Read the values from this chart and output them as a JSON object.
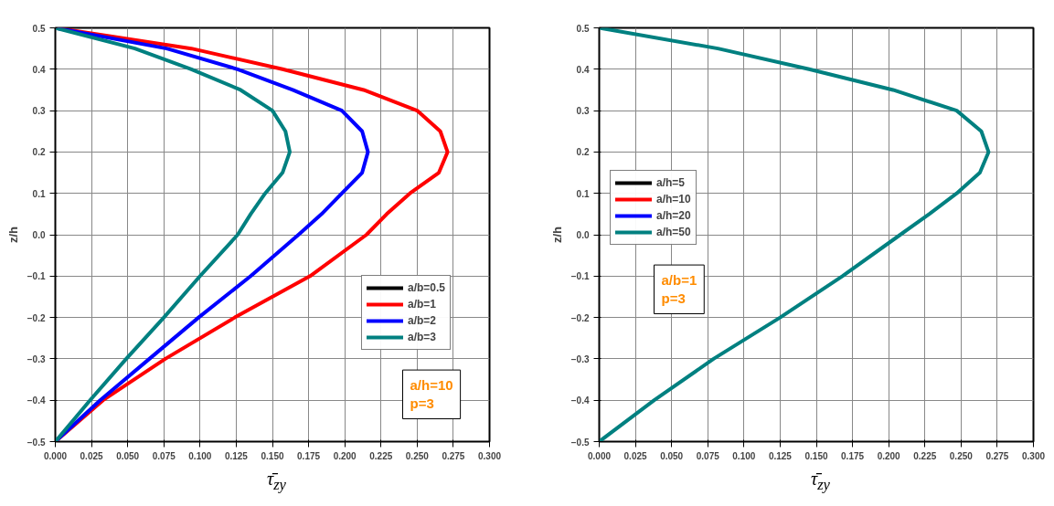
{
  "chart_data": [
    {
      "type": "line",
      "xlabel": "τ̄$_{zy}$",
      "ylabel": "z/h",
      "xlim": [
        0,
        0.3
      ],
      "ylim": [
        -0.5,
        0.5
      ],
      "xticks": [
        {
          "value": 0,
          "label": "0.000"
        },
        {
          "value": 0.025,
          "label": "0.025"
        },
        {
          "value": 0.05,
          "label": "0.050"
        },
        {
          "value": 0.075,
          "label": "0.075"
        },
        {
          "value": 0.1,
          "label": "0.100"
        },
        {
          "value": 0.125,
          "label": "0.125"
        },
        {
          "value": 0.15,
          "label": "0.150"
        },
        {
          "value": 0.175,
          "label": "0.175"
        },
        {
          "value": 0.2,
          "label": "0.200"
        },
        {
          "value": 0.225,
          "label": "0.225"
        },
        {
          "value": 0.25,
          "label": "0.250"
        },
        {
          "value": 0.275,
          "label": "0.275"
        },
        {
          "value": 0.3,
          "label": "0.300"
        }
      ],
      "yticks": [
        -0.5,
        -0.4,
        -0.3,
        -0.2,
        -0.1,
        {
          "value": 0,
          "label": "0.0"
        },
        0.1,
        0.2,
        0.3,
        0.4,
        0.5
      ],
      "grid": true,
      "legend": "right",
      "annotations": [
        "a/h=10",
        "p=3"
      ],
      "series": [
        {
          "name": "a/b=0.5",
          "color": "#000000"
        },
        {
          "name": "a/b=1",
          "color": "#ff0000",
          "x": [
            0,
            0.033,
            0.076,
            0.124,
            0.176,
            0.215,
            0.229,
            0.245,
            0.265,
            0.271,
            0.266,
            0.25,
            0.213,
            0.157,
            0.094,
            0
          ],
          "values": [
            -0.5,
            -0.4,
            -0.3,
            -0.2,
            -0.1,
            0,
            0.05,
            0.1,
            0.15,
            0.2,
            0.25,
            0.3,
            0.35,
            0.4,
            0.45,
            0.5
          ]
        },
        {
          "name": "a/b=2",
          "color": "#0000ff",
          "x": [
            0,
            0.031,
            0.065,
            0.099,
            0.135,
            0.168,
            0.184,
            0.198,
            0.212,
            0.216,
            0.212,
            0.198,
            0.164,
            0.126,
            0.077,
            0
          ],
          "values": [
            -0.5,
            -0.4,
            -0.3,
            -0.2,
            -0.1,
            0,
            0.05,
            0.1,
            0.15,
            0.2,
            0.25,
            0.3,
            0.35,
            0.4,
            0.45,
            0.5
          ]
        },
        {
          "name": "a/b=3",
          "color": "#008080",
          "x": [
            0,
            0.024,
            0.049,
            0.075,
            0.1,
            0.126,
            0.135,
            0.145,
            0.157,
            0.162,
            0.159,
            0.15,
            0.128,
            0.094,
            0.055,
            0
          ],
          "values": [
            -0.5,
            -0.4,
            -0.3,
            -0.2,
            -0.1,
            0,
            0.05,
            0.1,
            0.15,
            0.2,
            0.25,
            0.3,
            0.35,
            0.4,
            0.45,
            0.5
          ]
        }
      ]
    },
    {
      "type": "line",
      "xlabel": "τ̄$_{zy}$",
      "ylabel": "z/h",
      "xlim": [
        0,
        0.3
      ],
      "ylim": [
        -0.5,
        0.5
      ],
      "xticks": [
        {
          "value": 0,
          "label": "0.000"
        },
        {
          "value": 0.025,
          "label": "0.025"
        },
        {
          "value": 0.05,
          "label": "0.050"
        },
        {
          "value": 0.075,
          "label": "0.075"
        },
        {
          "value": 0.1,
          "label": "0.100"
        },
        {
          "value": 0.125,
          "label": "0.125"
        },
        {
          "value": 0.15,
          "label": "0.150"
        },
        {
          "value": 0.175,
          "label": "0.175"
        },
        {
          "value": 0.2,
          "label": "0.200"
        },
        {
          "value": 0.225,
          "label": "0.225"
        },
        {
          "value": 0.25,
          "label": "0.250"
        },
        {
          "value": 0.275,
          "label": "0.275"
        },
        {
          "value": 0.3,
          "label": "0.300"
        }
      ],
      "yticks": [
        -0.5,
        -0.4,
        -0.3,
        -0.2,
        -0.1,
        {
          "value": 0,
          "label": "0.0"
        },
        0.1,
        0.2,
        0.3,
        0.4,
        0.5
      ],
      "grid": true,
      "legend": "left",
      "annotations": [
        "a/b=1",
        "p=3"
      ],
      "series": [
        {
          "name": "a/h=5",
          "color": "#000000"
        },
        {
          "name": "a/h=10",
          "color": "#ff0000"
        },
        {
          "name": "a/h=20",
          "color": "#0000ff"
        },
        {
          "name": "a/h=50",
          "color": "#008080",
          "x": [
            0,
            0.038,
            0.079,
            0.125,
            0.168,
            0.208,
            0.228,
            0.247,
            0.263,
            0.269,
            0.264,
            0.247,
            0.203,
            0.145,
            0.082,
            0
          ],
          "values": [
            -0.5,
            -0.4,
            -0.3,
            -0.2,
            -0.1,
            0,
            0.05,
            0.1,
            0.15,
            0.2,
            0.25,
            0.3,
            0.35,
            0.4,
            0.45,
            0.5
          ]
        }
      ]
    }
  ]
}
